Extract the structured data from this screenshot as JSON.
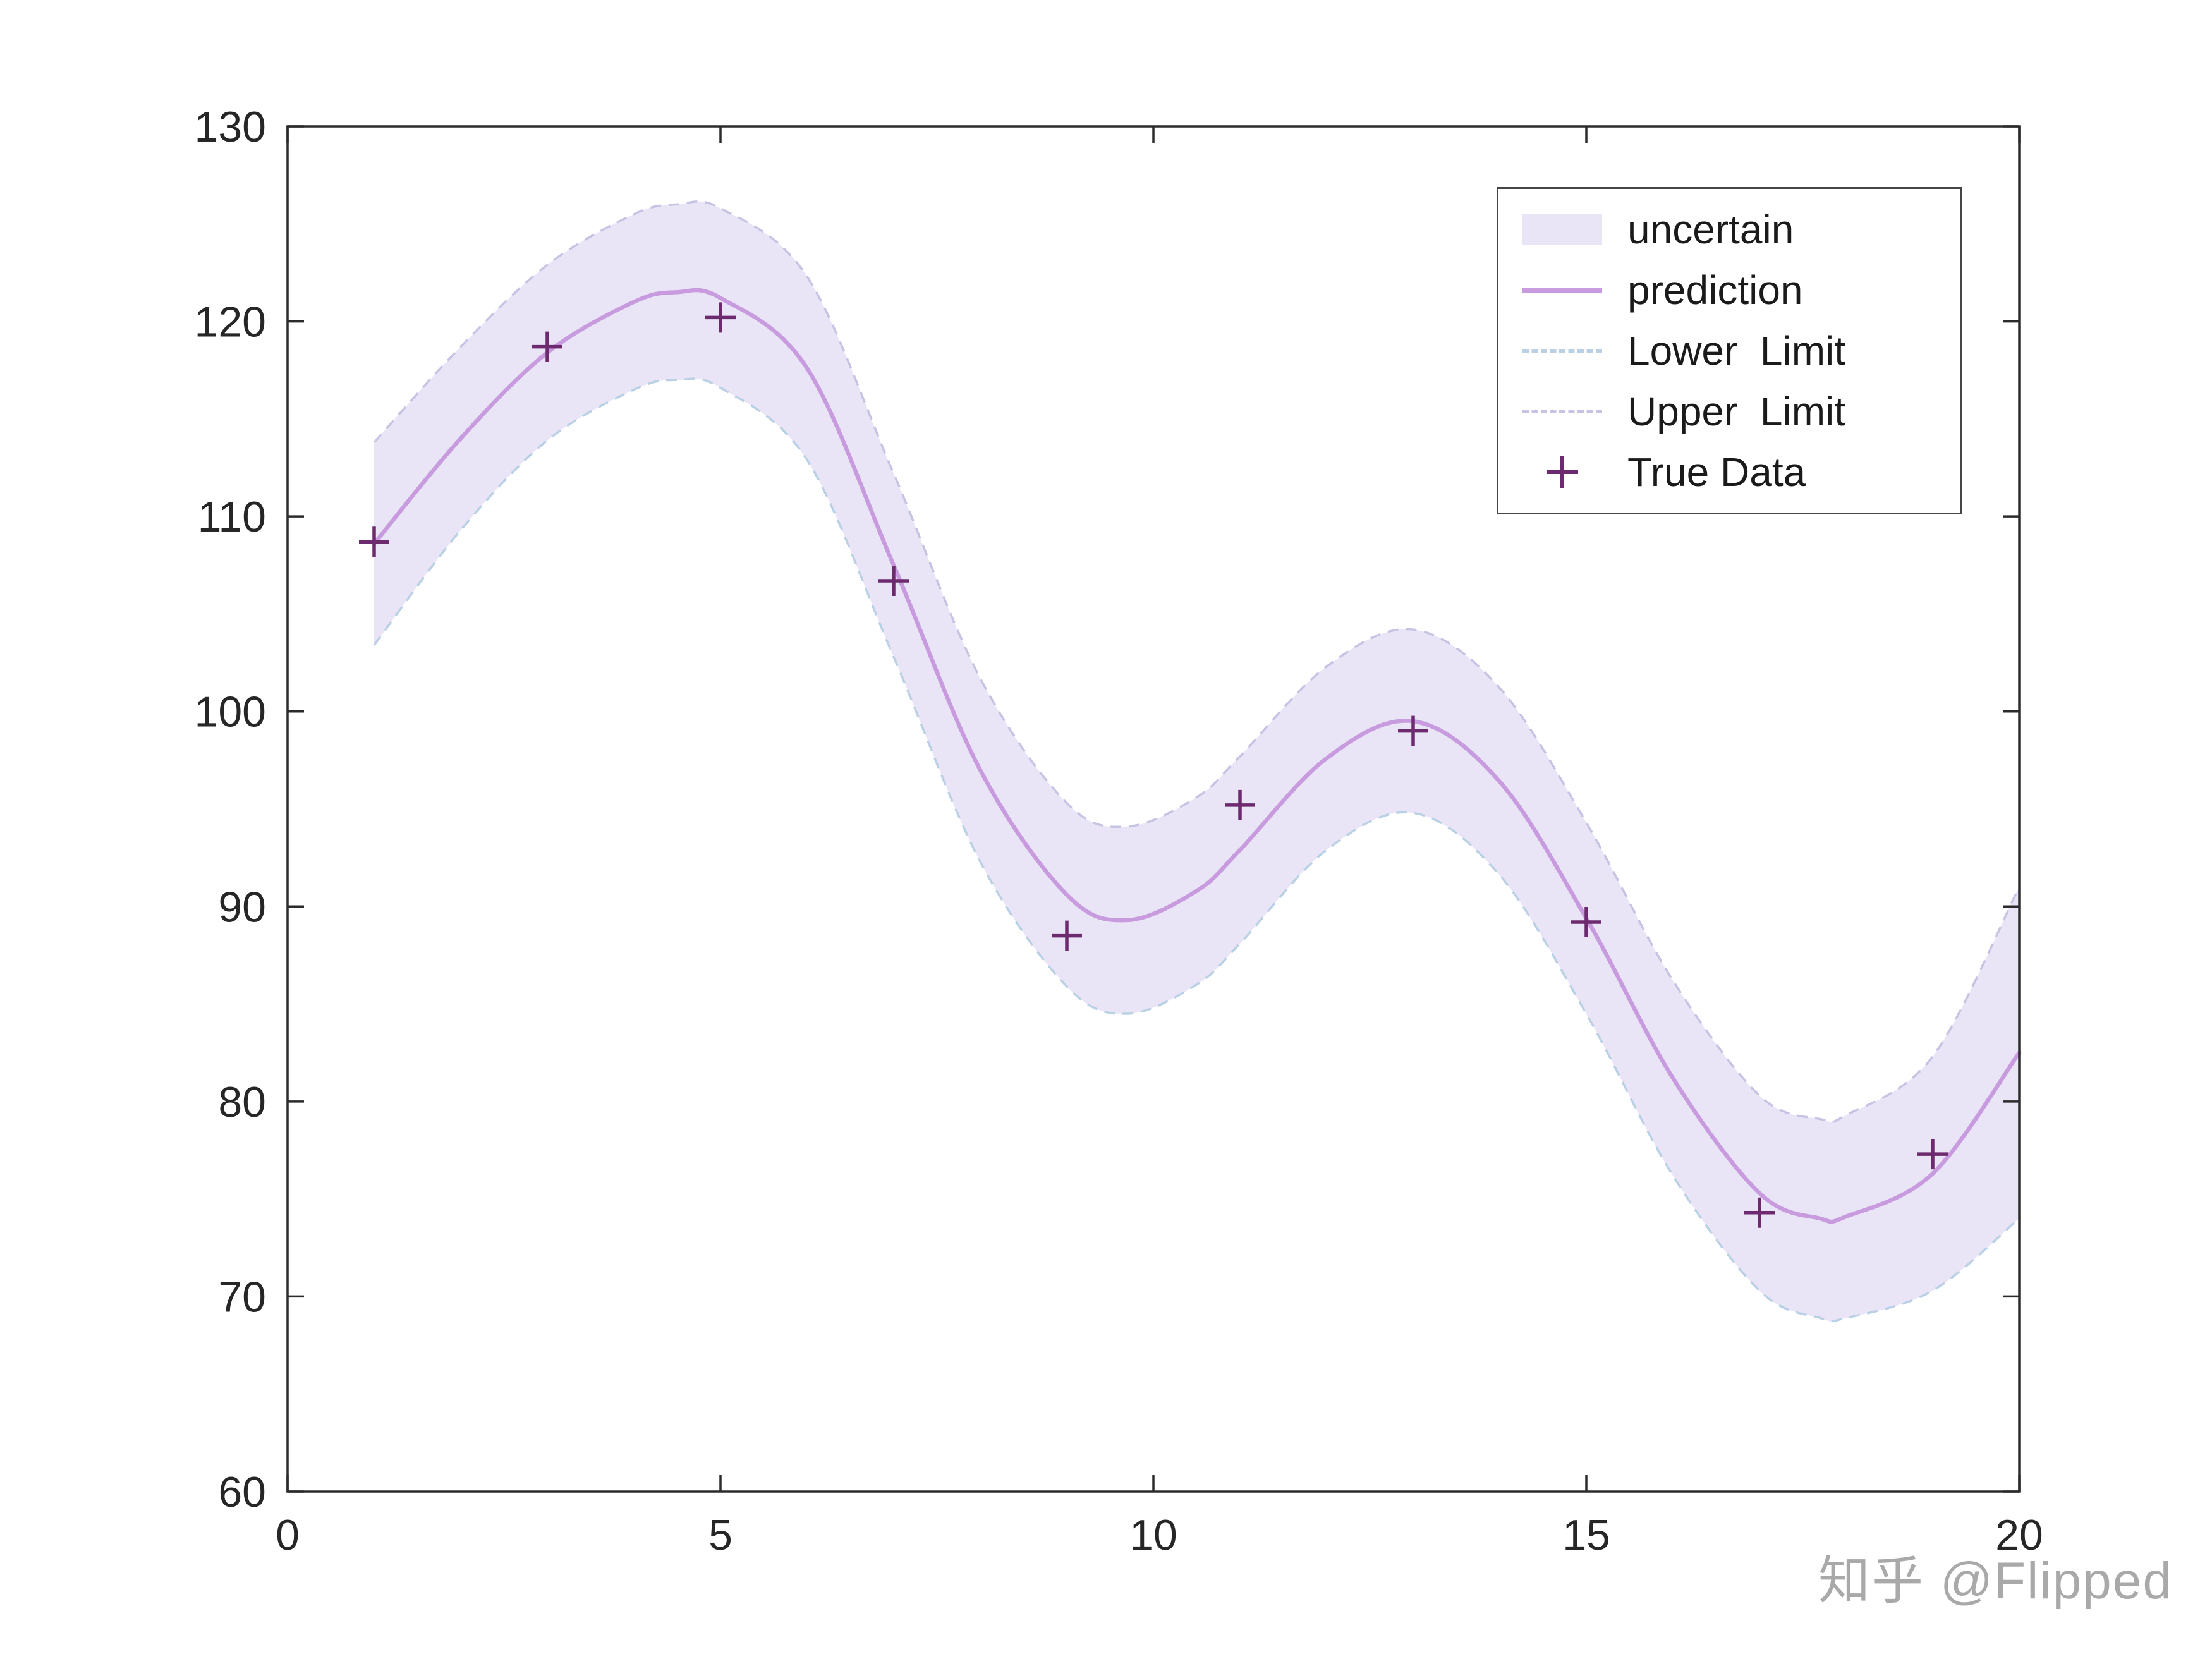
{
  "watermark": {
    "text": "知乎 @Flipped"
  },
  "legend": {
    "items": [
      {
        "label": "uncertain",
        "type": "band"
      },
      {
        "label": "prediction",
        "type": "line"
      },
      {
        "label": "Lower  Limit",
        "type": "dashed-lower"
      },
      {
        "label": "Upper  Limit",
        "type": "dashed-upper"
      },
      {
        "label": "True Data",
        "type": "marker"
      }
    ]
  },
  "colors": {
    "band": "#E9E5F7",
    "pred": "#C89BDE",
    "lower": "#BAD0E4",
    "upper": "#C7C4E3",
    "marker": "#6E2A6E",
    "axis": "#2B2B2B",
    "tick_label": "#262626"
  },
  "chart_data": {
    "type": "line",
    "xlim": [
      0,
      20
    ],
    "ylim": [
      60,
      130
    ],
    "xticks": [
      0,
      5,
      10,
      15,
      20
    ],
    "yticks": [
      60,
      70,
      80,
      90,
      100,
      110,
      120,
      130
    ],
    "grid": false,
    "legend_position": "northeast",
    "x": [
      1,
      2,
      3,
      4,
      4.5,
      5,
      6,
      7,
      8,
      9,
      9.7,
      10.5,
      11,
      12,
      13,
      14,
      15,
      16,
      17,
      17.7,
      18,
      19,
      20
    ],
    "series": [
      {
        "name": "prediction",
        "values": [
          108.6,
          114.0,
          118.4,
          121.0,
          121.5,
          121.2,
          117.6,
          107.5,
          97.0,
          90.6,
          89.3,
          90.8,
          92.9,
          97.6,
          99.5,
          96.4,
          89.4,
          81.2,
          75.3,
          74.0,
          74.1,
          76.3,
          82.5
        ]
      },
      {
        "name": "Upper Limit",
        "values": [
          113.8,
          118.7,
          122.9,
          125.5,
          126.0,
          125.8,
          122.3,
          112.2,
          101.7,
          95.3,
          94.1,
          95.6,
          97.7,
          102.3,
          104.2,
          101.2,
          94.3,
          86.2,
          80.3,
          79.1,
          79.3,
          82.3,
          91.0
        ]
      },
      {
        "name": "Lower Limit",
        "values": [
          103.4,
          109.3,
          113.9,
          116.5,
          117.0,
          116.6,
          112.9,
          102.8,
          92.3,
          85.9,
          84.5,
          86.0,
          88.1,
          92.9,
          94.8,
          91.6,
          84.5,
          76.2,
          70.3,
          68.9,
          68.9,
          70.3,
          74.0
        ]
      }
    ],
    "true_data": {
      "x": [
        1,
        3,
        5,
        7,
        9,
        11,
        13,
        15,
        17,
        19
      ],
      "y": [
        108.7,
        118.7,
        120.2,
        106.7,
        88.5,
        95.2,
        99.0,
        89.2,
        74.3,
        77.3
      ]
    }
  }
}
